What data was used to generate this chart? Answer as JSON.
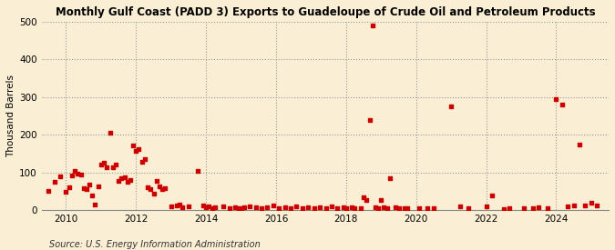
{
  "title": "Monthly Gulf Coast (PADD 3) Exports to Guadeloupe of Crude Oil and Petroleum Products",
  "ylabel": "Thousand Barrels",
  "source": "Source: U.S. Energy Information Administration",
  "background_color": "#faefd4",
  "marker_color": "#cc0000",
  "ylim": [
    0,
    500
  ],
  "yticks": [
    0,
    100,
    200,
    300,
    400,
    500
  ],
  "xlim_start": 2009.3,
  "xlim_end": 2025.5,
  "xticks": [
    2010,
    2012,
    2014,
    2016,
    2018,
    2020,
    2022,
    2024
  ],
  "data": [
    [
      2009.5,
      50
    ],
    [
      2009.67,
      75
    ],
    [
      2009.83,
      90
    ],
    [
      2010.0,
      48
    ],
    [
      2010.08,
      60
    ],
    [
      2010.17,
      92
    ],
    [
      2010.25,
      105
    ],
    [
      2010.33,
      98
    ],
    [
      2010.42,
      95
    ],
    [
      2010.5,
      58
    ],
    [
      2010.58,
      55
    ],
    [
      2010.67,
      68
    ],
    [
      2010.75,
      40
    ],
    [
      2010.83,
      15
    ],
    [
      2010.92,
      62
    ],
    [
      2011.0,
      120
    ],
    [
      2011.08,
      125
    ],
    [
      2011.17,
      115
    ],
    [
      2011.25,
      205
    ],
    [
      2011.33,
      115
    ],
    [
      2011.42,
      120
    ],
    [
      2011.5,
      78
    ],
    [
      2011.58,
      85
    ],
    [
      2011.67,
      88
    ],
    [
      2011.75,
      75
    ],
    [
      2011.83,
      80
    ],
    [
      2011.92,
      172
    ],
    [
      2012.0,
      158
    ],
    [
      2012.08,
      163
    ],
    [
      2012.17,
      128
    ],
    [
      2012.25,
      135
    ],
    [
      2012.33,
      60
    ],
    [
      2012.42,
      55
    ],
    [
      2012.5,
      45
    ],
    [
      2012.58,
      78
    ],
    [
      2012.67,
      62
    ],
    [
      2012.75,
      55
    ],
    [
      2012.83,
      58
    ],
    [
      2013.0,
      10
    ],
    [
      2013.17,
      12
    ],
    [
      2013.25,
      15
    ],
    [
      2013.33,
      8
    ],
    [
      2013.5,
      10
    ],
    [
      2013.75,
      105
    ],
    [
      2013.92,
      12
    ],
    [
      2014.0,
      8
    ],
    [
      2014.08,
      10
    ],
    [
      2014.17,
      5
    ],
    [
      2014.25,
      8
    ],
    [
      2014.5,
      10
    ],
    [
      2014.67,
      5
    ],
    [
      2014.83,
      8
    ],
    [
      2014.92,
      5
    ],
    [
      2015.0,
      5
    ],
    [
      2015.08,
      8
    ],
    [
      2015.25,
      10
    ],
    [
      2015.42,
      8
    ],
    [
      2015.58,
      5
    ],
    [
      2015.75,
      8
    ],
    [
      2015.92,
      12
    ],
    [
      2016.08,
      5
    ],
    [
      2016.25,
      8
    ],
    [
      2016.42,
      5
    ],
    [
      2016.58,
      10
    ],
    [
      2016.75,
      5
    ],
    [
      2016.92,
      8
    ],
    [
      2017.08,
      5
    ],
    [
      2017.25,
      8
    ],
    [
      2017.42,
      5
    ],
    [
      2017.58,
      10
    ],
    [
      2017.75,
      5
    ],
    [
      2017.92,
      8
    ],
    [
      2018.0,
      5
    ],
    [
      2018.17,
      8
    ],
    [
      2018.25,
      5
    ],
    [
      2018.42,
      5
    ],
    [
      2018.5,
      35
    ],
    [
      2018.58,
      28
    ],
    [
      2018.67,
      240
    ],
    [
      2018.75,
      490
    ],
    [
      2018.83,
      8
    ],
    [
      2018.92,
      5
    ],
    [
      2019.0,
      28
    ],
    [
      2019.08,
      8
    ],
    [
      2019.17,
      5
    ],
    [
      2019.25,
      85
    ],
    [
      2019.42,
      8
    ],
    [
      2019.5,
      5
    ],
    [
      2019.67,
      5
    ],
    [
      2019.75,
      5
    ],
    [
      2020.08,
      5
    ],
    [
      2020.33,
      5
    ],
    [
      2020.5,
      5
    ],
    [
      2021.0,
      275
    ],
    [
      2021.25,
      10
    ],
    [
      2021.5,
      5
    ],
    [
      2022.0,
      10
    ],
    [
      2022.17,
      40
    ],
    [
      2022.5,
      3
    ],
    [
      2022.67,
      5
    ],
    [
      2023.08,
      5
    ],
    [
      2023.33,
      5
    ],
    [
      2023.5,
      8
    ],
    [
      2023.75,
      5
    ],
    [
      2024.0,
      295
    ],
    [
      2024.17,
      280
    ],
    [
      2024.33,
      10
    ],
    [
      2024.5,
      12
    ],
    [
      2024.67,
      175
    ],
    [
      2024.83,
      12
    ],
    [
      2025.0,
      20
    ],
    [
      2025.17,
      12
    ]
  ]
}
